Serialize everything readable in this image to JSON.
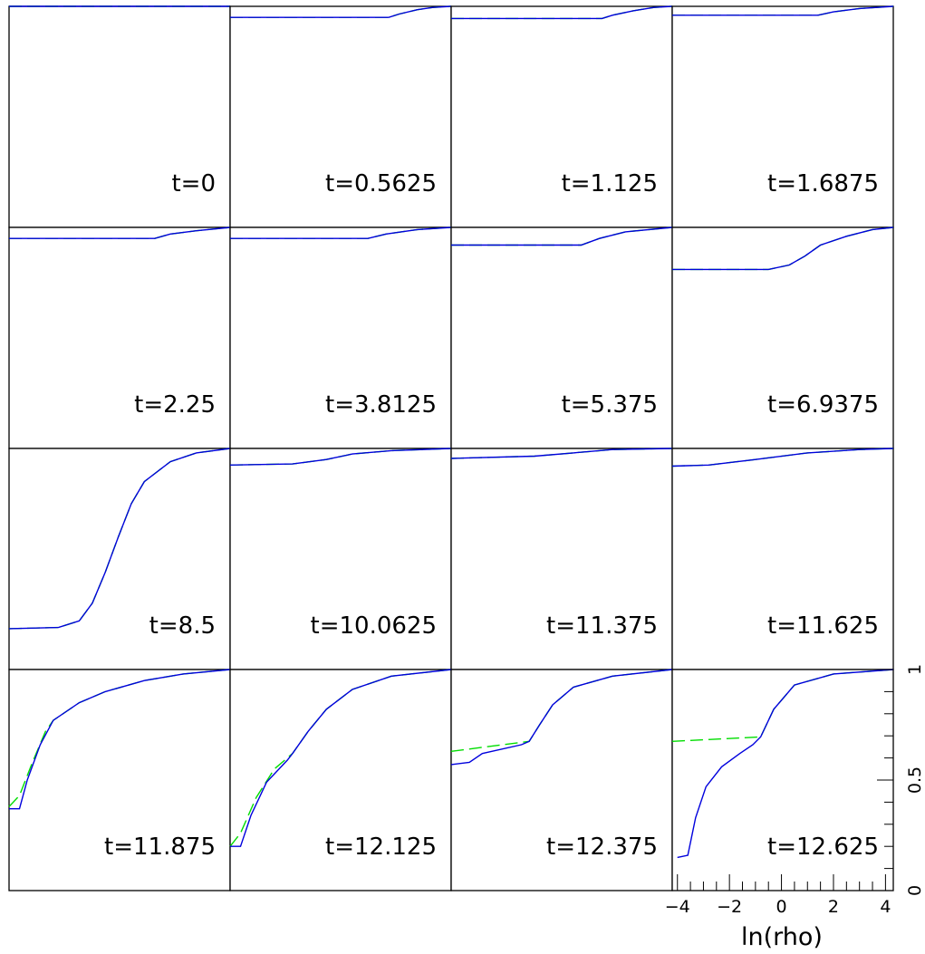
{
  "colors": {
    "series_solid": "#0000dd",
    "series_dashed": "#00dd00",
    "frame": "#000000",
    "background": "#ffffff"
  },
  "chart_data": {
    "type": "line",
    "layout": "4x4 grid of small multiples sharing axes",
    "xlabel": "ln(rho)",
    "ylabel": "",
    "xlim": [
      -4.2,
      4.3
    ],
    "ylim": [
      0,
      1
    ],
    "x_ticks": [
      "−4",
      "−2",
      "0",
      "2",
      "4"
    ],
    "y_ticks": [
      "0",
      "0.5",
      "1"
    ],
    "grid": false,
    "legend": "none",
    "panels": [
      {
        "label": "t=0",
        "solid": [
          [
            -4.2,
            1.0
          ],
          [
            4.3,
            1.0
          ]
        ],
        "dashed": [
          [
            -4.2,
            1.0
          ],
          [
            4.3,
            1.0
          ]
        ]
      },
      {
        "label": "t=0.5625",
        "solid": [
          [
            -4.2,
            0.95
          ],
          [
            1.9,
            0.95
          ],
          [
            2.3,
            0.965
          ],
          [
            3.0,
            0.985
          ],
          [
            3.6,
            0.995
          ],
          [
            4.3,
            1.0
          ]
        ],
        "dashed": [
          [
            -4.2,
            0.95
          ],
          [
            1.9,
            0.95
          ],
          [
            2.3,
            0.965
          ],
          [
            3.0,
            0.985
          ],
          [
            3.6,
            0.995
          ],
          [
            4.3,
            1.0
          ]
        ]
      },
      {
        "label": "t=1.125",
        "solid": [
          [
            -4.2,
            0.945
          ],
          [
            1.6,
            0.945
          ],
          [
            2.0,
            0.96
          ],
          [
            2.8,
            0.98
          ],
          [
            3.6,
            0.995
          ],
          [
            4.3,
            1.0
          ]
        ],
        "dashed": [
          [
            -4.2,
            0.945
          ],
          [
            1.6,
            0.945
          ],
          [
            2.0,
            0.96
          ],
          [
            2.8,
            0.98
          ],
          [
            3.6,
            0.995
          ],
          [
            4.3,
            1.0
          ]
        ]
      },
      {
        "label": "t=1.6875",
        "solid": [
          [
            -4.2,
            0.96
          ],
          [
            1.4,
            0.96
          ],
          [
            2.0,
            0.975
          ],
          [
            3.0,
            0.99
          ],
          [
            4.3,
            1.0
          ]
        ],
        "dashed": [
          [
            -4.2,
            0.96
          ],
          [
            1.4,
            0.96
          ],
          [
            2.0,
            0.975
          ],
          [
            3.0,
            0.99
          ],
          [
            4.3,
            1.0
          ]
        ]
      },
      {
        "label": "t=2.25",
        "solid": [
          [
            -4.2,
            0.95
          ],
          [
            1.4,
            0.95
          ],
          [
            2.0,
            0.97
          ],
          [
            3.0,
            0.985
          ],
          [
            4.3,
            1.0
          ]
        ],
        "dashed": [
          [
            -4.2,
            0.95
          ],
          [
            1.4,
            0.95
          ],
          [
            2.0,
            0.97
          ],
          [
            3.0,
            0.985
          ],
          [
            4.3,
            1.0
          ]
        ]
      },
      {
        "label": "t=3.8125",
        "solid": [
          [
            -4.2,
            0.95
          ],
          [
            1.1,
            0.95
          ],
          [
            1.8,
            0.97
          ],
          [
            3.0,
            0.99
          ],
          [
            4.3,
            1.0
          ]
        ],
        "dashed": [
          [
            -4.2,
            0.95
          ],
          [
            1.1,
            0.95
          ],
          [
            1.8,
            0.97
          ],
          [
            3.0,
            0.99
          ],
          [
            4.3,
            1.0
          ]
        ]
      },
      {
        "label": "t=5.375",
        "solid": [
          [
            -4.2,
            0.92
          ],
          [
            0.8,
            0.92
          ],
          [
            1.5,
            0.95
          ],
          [
            2.5,
            0.98
          ],
          [
            4.3,
            1.0
          ]
        ],
        "dashed": [
          [
            -4.2,
            0.92
          ],
          [
            0.8,
            0.92
          ],
          [
            1.5,
            0.95
          ],
          [
            2.5,
            0.98
          ],
          [
            4.3,
            1.0
          ]
        ]
      },
      {
        "label": "t=6.9375",
        "solid": [
          [
            -4.2,
            0.81
          ],
          [
            -0.5,
            0.81
          ],
          [
            0.3,
            0.83
          ],
          [
            0.9,
            0.87
          ],
          [
            1.5,
            0.92
          ],
          [
            2.5,
            0.96
          ],
          [
            3.5,
            0.99
          ],
          [
            4.3,
            1.0
          ]
        ],
        "dashed": [
          [
            -4.2,
            0.81
          ],
          [
            -0.5,
            0.81
          ],
          [
            0.3,
            0.83
          ],
          [
            0.9,
            0.87
          ],
          [
            1.5,
            0.92
          ],
          [
            2.5,
            0.96
          ],
          [
            3.5,
            0.99
          ],
          [
            4.3,
            1.0
          ]
        ]
      },
      {
        "label": "t=8.5",
        "solid": [
          [
            -4.2,
            0.185
          ],
          [
            -2.3,
            0.19
          ],
          [
            -1.5,
            0.22
          ],
          [
            -1.0,
            0.3
          ],
          [
            -0.5,
            0.44
          ],
          [
            0.0,
            0.6
          ],
          [
            0.5,
            0.75
          ],
          [
            1.0,
            0.85
          ],
          [
            2.0,
            0.94
          ],
          [
            3.0,
            0.98
          ],
          [
            4.3,
            1.0
          ]
        ],
        "dashed": [
          [
            -4.2,
            0.185
          ],
          [
            -2.3,
            0.19
          ],
          [
            -1.5,
            0.22
          ],
          [
            -1.0,
            0.3
          ],
          [
            -0.5,
            0.44
          ],
          [
            0.0,
            0.6
          ],
          [
            0.5,
            0.75
          ],
          [
            1.0,
            0.85
          ],
          [
            2.0,
            0.94
          ],
          [
            3.0,
            0.98
          ],
          [
            4.3,
            1.0
          ]
        ]
      },
      {
        "label": "t=10.0625",
        "solid": [
          [
            -4.2,
            0.925
          ],
          [
            -1.8,
            0.93
          ],
          [
            -0.5,
            0.95
          ],
          [
            0.5,
            0.975
          ],
          [
            2.0,
            0.99
          ],
          [
            4.3,
            1.0
          ]
        ],
        "dashed": [
          [
            -4.2,
            0.925
          ],
          [
            -1.8,
            0.93
          ],
          [
            -0.5,
            0.95
          ],
          [
            0.5,
            0.975
          ],
          [
            2.0,
            0.99
          ],
          [
            4.3,
            1.0
          ]
        ]
      },
      {
        "label": "t=11.375",
        "solid": [
          [
            -4.2,
            0.955
          ],
          [
            -1.0,
            0.965
          ],
          [
            0.5,
            0.98
          ],
          [
            2.0,
            0.995
          ],
          [
            4.3,
            1.0
          ]
        ],
        "dashed": [
          [
            -4.2,
            0.955
          ],
          [
            -1.0,
            0.965
          ],
          [
            0.5,
            0.98
          ],
          [
            2.0,
            0.995
          ],
          [
            4.3,
            1.0
          ]
        ]
      },
      {
        "label": "t=11.625",
        "solid": [
          [
            -4.2,
            0.92
          ],
          [
            -2.8,
            0.925
          ],
          [
            -1.0,
            0.95
          ],
          [
            1.0,
            0.98
          ],
          [
            3.0,
            0.995
          ],
          [
            4.3,
            1.0
          ]
        ],
        "dashed": [
          [
            -4.2,
            0.92
          ],
          [
            -2.8,
            0.925
          ],
          [
            -1.0,
            0.95
          ],
          [
            1.0,
            0.98
          ],
          [
            3.0,
            0.995
          ],
          [
            4.3,
            1.0
          ]
        ]
      },
      {
        "label": "t=11.875",
        "solid": [
          [
            -4.2,
            0.37
          ],
          [
            -3.8,
            0.37
          ],
          [
            -3.5,
            0.5
          ],
          [
            -3.0,
            0.66
          ],
          [
            -2.5,
            0.77
          ],
          [
            -1.5,
            0.85
          ],
          [
            -0.5,
            0.9
          ],
          [
            1.0,
            0.95
          ],
          [
            2.5,
            0.98
          ],
          [
            4.3,
            1.0
          ]
        ],
        "dashed": [
          [
            -4.2,
            0.38
          ],
          [
            -3.8,
            0.43
          ],
          [
            -3.3,
            0.58
          ],
          [
            -2.8,
            0.72
          ],
          [
            -2.5,
            0.77
          ],
          [
            -1.5,
            0.85
          ],
          [
            -0.5,
            0.9
          ],
          [
            1.0,
            0.95
          ],
          [
            2.5,
            0.98
          ],
          [
            4.3,
            1.0
          ]
        ]
      },
      {
        "label": "t=12.125",
        "solid": [
          [
            -4.2,
            0.2
          ],
          [
            -3.8,
            0.2
          ],
          [
            -3.4,
            0.34
          ],
          [
            -2.8,
            0.49
          ],
          [
            -2.0,
            0.59
          ],
          [
            -1.8,
            0.62
          ],
          [
            -1.2,
            0.72
          ],
          [
            -0.5,
            0.82
          ],
          [
            0.5,
            0.91
          ],
          [
            2.0,
            0.97
          ],
          [
            4.3,
            1.0
          ]
        ],
        "dashed": [
          [
            -4.2,
            0.2
          ],
          [
            -3.8,
            0.26
          ],
          [
            -3.2,
            0.42
          ],
          [
            -2.5,
            0.55
          ],
          [
            -1.8,
            0.62
          ],
          [
            -1.2,
            0.72
          ],
          [
            -0.5,
            0.82
          ],
          [
            0.5,
            0.91
          ],
          [
            2.0,
            0.97
          ],
          [
            4.3,
            1.0
          ]
        ]
      },
      {
        "label": "t=12.375",
        "solid": [
          [
            -4.2,
            0.57
          ],
          [
            -3.5,
            0.58
          ],
          [
            -3.0,
            0.62
          ],
          [
            -1.5,
            0.66
          ],
          [
            -1.2,
            0.675
          ],
          [
            -0.8,
            0.75
          ],
          [
            -0.3,
            0.84
          ],
          [
            0.5,
            0.92
          ],
          [
            2.0,
            0.97
          ],
          [
            4.3,
            1.0
          ]
        ],
        "dashed": [
          [
            -4.2,
            0.63
          ],
          [
            -1.2,
            0.675
          ],
          [
            -0.8,
            0.75
          ],
          [
            -0.3,
            0.84
          ],
          [
            0.5,
            0.92
          ],
          [
            2.0,
            0.97
          ],
          [
            4.3,
            1.0
          ]
        ]
      },
      {
        "label": "t=12.625",
        "solid": [
          [
            -4.0,
            0.15
          ],
          [
            -3.6,
            0.16
          ],
          [
            -3.3,
            0.33
          ],
          [
            -2.9,
            0.47
          ],
          [
            -2.3,
            0.56
          ],
          [
            -1.6,
            0.62
          ],
          [
            -1.1,
            0.66
          ],
          [
            -0.8,
            0.695
          ],
          [
            -0.3,
            0.82
          ],
          [
            0.5,
            0.93
          ],
          [
            2.0,
            0.98
          ],
          [
            4.3,
            1.0
          ]
        ],
        "dashed": [
          [
            -4.2,
            0.675
          ],
          [
            -0.8,
            0.695
          ],
          [
            -0.3,
            0.82
          ],
          [
            0.5,
            0.93
          ],
          [
            2.0,
            0.98
          ],
          [
            4.3,
            1.0
          ]
        ]
      }
    ]
  }
}
